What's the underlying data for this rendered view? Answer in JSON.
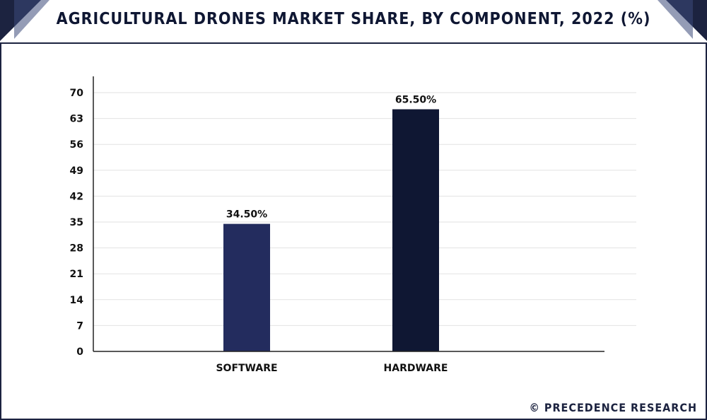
{
  "title": "AGRICULTURAL DRONES MARKET SHARE, BY COMPONENT, 2022 (%)",
  "watermark": "© PRECEDENCE RESEARCH",
  "colors": {
    "frame": "#1c2340",
    "grid": "#e2e2e2",
    "text": "#111111"
  },
  "chart_data": {
    "type": "bar",
    "categories": [
      "SOFTWARE",
      "HARDWARE"
    ],
    "values": [
      34.5,
      65.5
    ],
    "data_labels": [
      "34.50%",
      "65.50%"
    ],
    "bar_colors": [
      "#232c5e",
      "#0f1733"
    ],
    "ylim": [
      0,
      70
    ],
    "yticks": [
      0,
      7,
      14,
      21,
      28,
      35,
      42,
      49,
      56,
      63,
      70
    ],
    "grid": true,
    "legend": "none",
    "title": "AGRICULTURAL DRONES MARKET SHARE, BY COMPONENT, 2022 (%)",
    "xlabel": "",
    "ylabel": ""
  }
}
